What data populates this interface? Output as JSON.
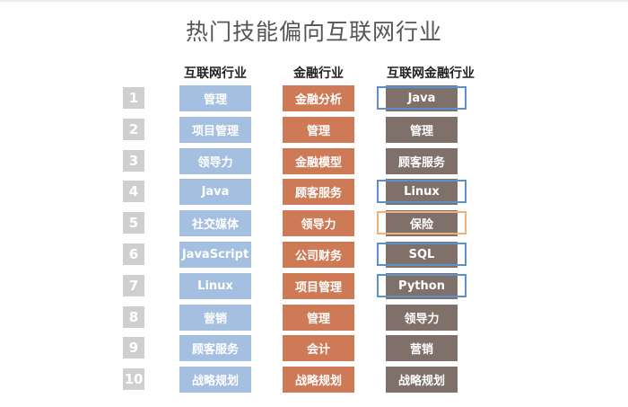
{
  "title": "热门技能偏向互联网行业",
  "columns": {
    "internet": "互联网行业",
    "finance": "金融行业",
    "internet_finance": "互联网金融行业"
  },
  "rows": [
    {
      "rank": "1",
      "internet": "管理",
      "finance": "金融分析",
      "internet_finance": "Java",
      "highlight": "blue"
    },
    {
      "rank": "2",
      "internet": "项目管理",
      "finance": "管理",
      "internet_finance": "管理",
      "highlight": ""
    },
    {
      "rank": "3",
      "internet": "领导力",
      "finance": "金融模型",
      "internet_finance": "顾客服务",
      "highlight": ""
    },
    {
      "rank": "4",
      "internet": "Java",
      "finance": "顾客服务",
      "internet_finance": "Linux",
      "highlight": "blue"
    },
    {
      "rank": "5",
      "internet": "社交媒体",
      "finance": "领导力",
      "internet_finance": "保险",
      "highlight": "orange"
    },
    {
      "rank": "6",
      "internet": "JavaScript",
      "finance": "公司财务",
      "internet_finance": "SQL",
      "highlight": "blue"
    },
    {
      "rank": "7",
      "internet": "Linux",
      "finance": "项目管理",
      "internet_finance": "Python",
      "highlight": "blue"
    },
    {
      "rank": "8",
      "internet": "营销",
      "finance": "管理",
      "internet_finance": "领导力",
      "highlight": ""
    },
    {
      "rank": "9",
      "internet": "顾客服务",
      "finance": "会计",
      "internet_finance": "营销",
      "highlight": ""
    },
    {
      "rank": "10",
      "internet": "战略规划",
      "finance": "战略规划",
      "internet_finance": "战略规划",
      "highlight": ""
    }
  ],
  "colors": {
    "internet": "#a4bfe0",
    "finance": "#cf7a56",
    "internet_finance": "#7f7069",
    "rank": "#cfcfcf",
    "highlight_blue": "#5b90c9",
    "highlight_orange": "#f0b27a"
  }
}
